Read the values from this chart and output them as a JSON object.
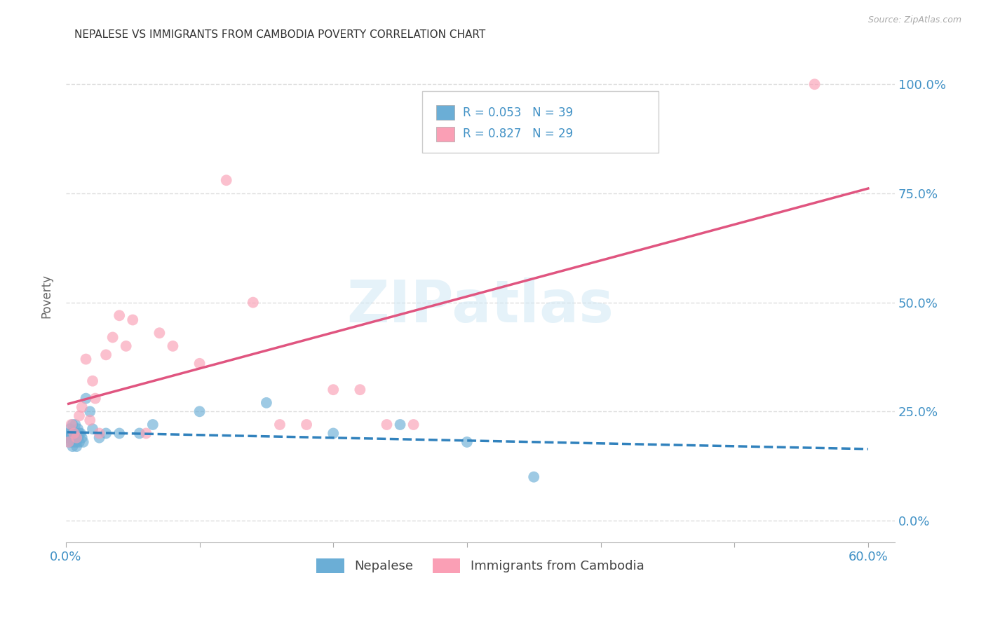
{
  "title": "NEPALESE VS IMMIGRANTS FROM CAMBODIA POVERTY CORRELATION CHART",
  "source": "Source: ZipAtlas.com",
  "ylabel_left": "Poverty",
  "xlim": [
    0.0,
    0.62
  ],
  "ylim": [
    -0.05,
    1.08
  ],
  "xticks": [
    0.0,
    0.1,
    0.2,
    0.3,
    0.4,
    0.5,
    0.6
  ],
  "yticks": [
    0.0,
    0.25,
    0.5,
    0.75,
    1.0
  ],
  "ytick_labels_right": [
    "0.0%",
    "25.0%",
    "50.0%",
    "75.0%",
    "100.0%"
  ],
  "blue_scatter_color": "#6baed6",
  "pink_scatter_color": "#fa9fb5",
  "blue_line_color": "#3182bd",
  "pink_line_color": "#e05580",
  "legend_r_blue": "R = 0.053",
  "legend_n_blue": "N = 39",
  "legend_r_pink": "R = 0.827",
  "legend_n_pink": "N = 29",
  "legend_label_blue": "Nepalese",
  "legend_label_pink": "Immigrants from Cambodia",
  "watermark_text": "ZIPatlas",
  "axis_color": "#4292c6",
  "grid_color": "#dddddd",
  "bg_color": "#ffffff",
  "nepalese_x": [
    0.001,
    0.002,
    0.002,
    0.003,
    0.003,
    0.004,
    0.004,
    0.005,
    0.005,
    0.005,
    0.006,
    0.006,
    0.007,
    0.007,
    0.007,
    0.008,
    0.008,
    0.008,
    0.009,
    0.009,
    0.01,
    0.01,
    0.011,
    0.012,
    0.013,
    0.015,
    0.018,
    0.02,
    0.025,
    0.03,
    0.04,
    0.055,
    0.065,
    0.1,
    0.15,
    0.2,
    0.25,
    0.3,
    0.35
  ],
  "nepalese_y": [
    0.19,
    0.2,
    0.18,
    0.21,
    0.19,
    0.18,
    0.2,
    0.22,
    0.19,
    0.17,
    0.2,
    0.18,
    0.2,
    0.22,
    0.19,
    0.18,
    0.2,
    0.17,
    0.21,
    0.19,
    0.2,
    0.18,
    0.2,
    0.19,
    0.18,
    0.28,
    0.25,
    0.21,
    0.19,
    0.2,
    0.2,
    0.2,
    0.22,
    0.25,
    0.27,
    0.2,
    0.22,
    0.18,
    0.1
  ],
  "cambodia_x": [
    0.002,
    0.004,
    0.006,
    0.008,
    0.01,
    0.012,
    0.015,
    0.018,
    0.02,
    0.022,
    0.025,
    0.03,
    0.035,
    0.04,
    0.045,
    0.05,
    0.06,
    0.07,
    0.08,
    0.1,
    0.12,
    0.14,
    0.16,
    0.18,
    0.2,
    0.22,
    0.24,
    0.26,
    0.56
  ],
  "cambodia_y": [
    0.18,
    0.22,
    0.2,
    0.19,
    0.24,
    0.26,
    0.37,
    0.23,
    0.32,
    0.28,
    0.2,
    0.38,
    0.42,
    0.47,
    0.4,
    0.46,
    0.2,
    0.43,
    0.4,
    0.36,
    0.78,
    0.5,
    0.22,
    0.22,
    0.3,
    0.3,
    0.22,
    0.22,
    1.0
  ]
}
